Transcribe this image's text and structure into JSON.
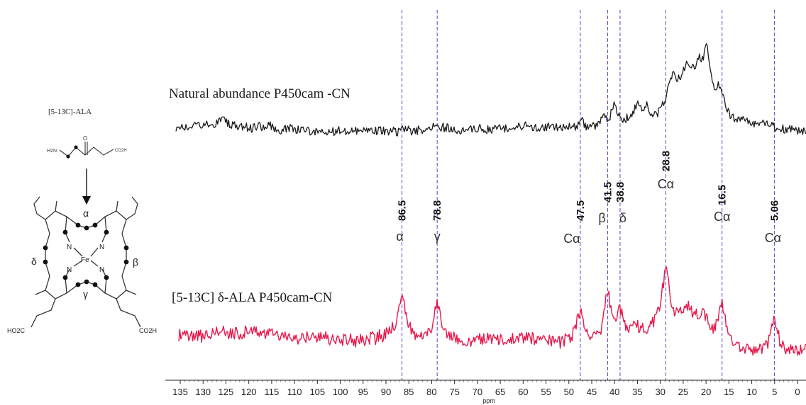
{
  "molecule": {
    "precursor_label": "[5-13C]-ALA",
    "porphyrin_positions": {
      "alpha": "α",
      "beta": "β",
      "gamma": "γ",
      "delta": "δ"
    },
    "metal": "Fe",
    "nitrogen": "N",
    "acid_left": "HO2C",
    "acid_right": "CO2H",
    "acid_small": "CO2H",
    "amine": "H2N"
  },
  "chart_data": {
    "type": "line",
    "xlabel": "ppm",
    "xlim": [
      135,
      0
    ],
    "xticks": [
      135,
      130,
      125,
      120,
      115,
      110,
      105,
      100,
      95,
      90,
      85,
      80,
      75,
      70,
      65,
      60,
      55,
      50,
      45,
      40,
      35,
      30,
      25,
      20,
      15,
      10,
      5,
      0
    ],
    "guide_lines": [
      86.5,
      78.8,
      47.5,
      41.5,
      38.8,
      28.8,
      16.5,
      5.06
    ],
    "series": [
      {
        "name": "Natural abundance P450cam -CN",
        "color": "#1a1a1a",
        "baseline": 183,
        "features": [
          {
            "ppm": 125.5,
            "height": 0.35,
            "width": 2.5
          },
          {
            "ppm": 110.5,
            "height": 0.1,
            "width": 1.5
          },
          {
            "ppm": 47.2,
            "height": 0.45,
            "width": 0.35
          },
          {
            "ppm": 42.5,
            "height": 0.35,
            "width": 0.5
          },
          {
            "ppm": 40.0,
            "height": 0.95,
            "width": 0.7
          },
          {
            "ppm": 35.0,
            "height": 0.85,
            "width": 0.9
          },
          {
            "ppm": 33.0,
            "height": 0.45,
            "width": 0.6
          },
          {
            "ppm": 27.5,
            "height": 1.55,
            "width": 1.5
          },
          {
            "ppm": 24.0,
            "height": 1.45,
            "width": 1.6
          },
          {
            "ppm": 21.5,
            "height": 1.3,
            "width": 1.2
          },
          {
            "ppm": 19.8,
            "height": 2.3,
            "width": 0.8
          },
          {
            "ppm": 17.0,
            "height": 1.25,
            "width": 1.2
          },
          {
            "ppm": 23.0,
            "height": 0.9,
            "width": 5.5
          }
        ]
      },
      {
        "name": "[5-13C] δ-ALA P450cam-CN",
        "color": "#e8174a",
        "baseline": 480,
        "features": [
          {
            "ppm": 126.5,
            "height": 0.35,
            "width": 2.0
          },
          {
            "ppm": 86.5,
            "height": 2.05,
            "width": 0.9
          },
          {
            "ppm": 78.8,
            "height": 1.75,
            "width": 0.8
          },
          {
            "ppm": 60.0,
            "height": 0.4,
            "width": 6.0
          },
          {
            "ppm": 47.5,
            "height": 1.7,
            "width": 0.9
          },
          {
            "ppm": 41.5,
            "height": 2.25,
            "width": 0.9
          },
          {
            "ppm": 38.8,
            "height": 1.3,
            "width": 0.9
          },
          {
            "ppm": 35.5,
            "height": 0.8,
            "width": 0.8
          },
          {
            "ppm": 28.8,
            "height": 2.85,
            "width": 1.1
          },
          {
            "ppm": 24.0,
            "height": 1.45,
            "width": 2.5
          },
          {
            "ppm": 20.5,
            "height": 1.05,
            "width": 1.5
          },
          {
            "ppm": 16.5,
            "height": 2.05,
            "width": 1.0
          },
          {
            "ppm": 5.06,
            "height": 1.75,
            "width": 0.9
          },
          {
            "ppm": 31.0,
            "height": 0.7,
            "width": 5.0
          }
        ]
      }
    ],
    "peak_labels": [
      {
        "ppm": 86.5,
        "value": "86.5",
        "assignment": "α"
      },
      {
        "ppm": 78.8,
        "value": "78.8",
        "assignment": "γ"
      },
      {
        "ppm": 47.5,
        "value": "47.5",
        "assignment": "Cα"
      },
      {
        "ppm": 41.5,
        "value": "41.5",
        "assignment": "β"
      },
      {
        "ppm": 38.8,
        "value": "38.8",
        "assignment": "δ"
      },
      {
        "ppm": 28.8,
        "value": "28.8",
        "assignment": "Cα"
      },
      {
        "ppm": 16.5,
        "value": "16.5",
        "assignment": "Cα"
      },
      {
        "ppm": 5.06,
        "value": "5.06",
        "assignment": "Cα"
      }
    ]
  }
}
